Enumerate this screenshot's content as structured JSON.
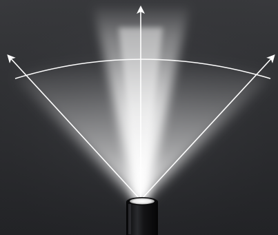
{
  "colors": {
    "background_top": "#3a3b3e",
    "background_bottom": "#222326",
    "beam_glow": "#ffffff",
    "arrow": "#ffffff",
    "flashlight_body": "#0e0e10",
    "lens": "#f4f4f4"
  },
  "icons": {
    "light_source": "flashlight-icon",
    "direction": "arrow-up-icon"
  }
}
